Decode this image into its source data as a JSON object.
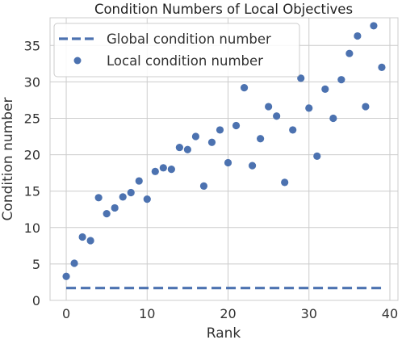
{
  "chart_data": {
    "type": "scatter",
    "title": "Condition Numbers of Local Objectives",
    "xlabel": "Rank",
    "ylabel": "Condition number",
    "xlim": [
      -2,
      41
    ],
    "ylim": [
      0,
      38.8
    ],
    "xticks": [
      0,
      10,
      20,
      30,
      40
    ],
    "yticks": [
      0,
      5,
      10,
      15,
      20,
      25,
      30,
      35
    ],
    "grid": true,
    "legend_position": "top-left",
    "series": [
      {
        "name": "Global condition number",
        "kind": "dashed-line",
        "color": "#4c72b0",
        "x": [
          0,
          39
        ],
        "y": [
          1.7,
          1.7
        ]
      },
      {
        "name": "Local condition number",
        "kind": "points",
        "color": "#4c72b0",
        "x": [
          0,
          1,
          2,
          3,
          4,
          5,
          6,
          7,
          8,
          9,
          10,
          11,
          12,
          13,
          14,
          15,
          16,
          17,
          18,
          19,
          20,
          21,
          22,
          23,
          24,
          25,
          26,
          27,
          28,
          29,
          30,
          31,
          32,
          33,
          34,
          35,
          36,
          37,
          38,
          39
        ],
        "y": [
          3.3,
          5.1,
          8.7,
          8.2,
          14.1,
          11.9,
          12.7,
          14.2,
          14.8,
          16.4,
          13.9,
          17.7,
          18.2,
          18.0,
          21.0,
          20.7,
          22.5,
          15.7,
          21.7,
          23.4,
          18.9,
          24.0,
          29.2,
          18.5,
          22.2,
          26.6,
          25.3,
          16.2,
          23.4,
          30.5,
          26.4,
          19.8,
          29.0,
          25.0,
          30.3,
          33.9,
          36.3,
          26.6,
          37.7,
          32.0
        ]
      }
    ]
  }
}
